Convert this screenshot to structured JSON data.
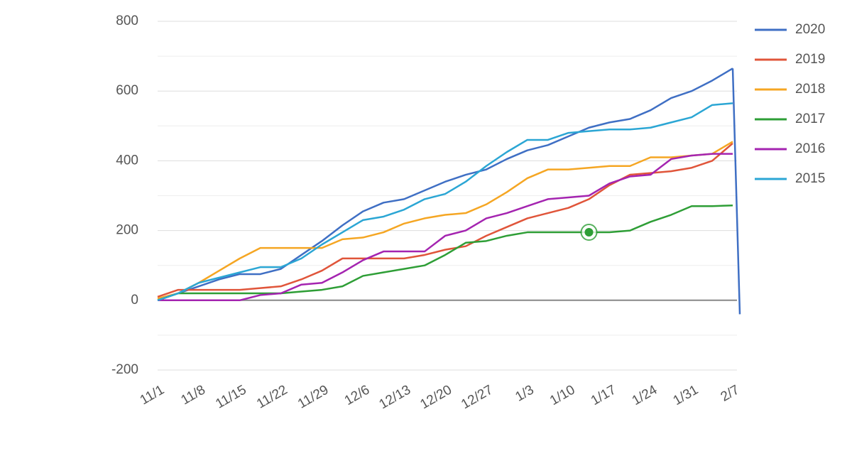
{
  "chart_data": {
    "type": "line",
    "categories": [
      "11/1",
      null,
      "11/8",
      null,
      "11/15",
      null,
      "11/22",
      null,
      "11/29",
      null,
      "12/6",
      null,
      "12/13",
      null,
      "12/20",
      null,
      "12/27",
      null,
      "1/3",
      null,
      "1/10",
      null,
      "1/17",
      null,
      "1/24",
      null,
      "1/31",
      null,
      "2/7"
    ],
    "series": [
      {
        "name": "2020",
        "color": "#3f6fc4",
        "values": [
          0,
          20,
          40,
          60,
          75,
          75,
          90,
          130,
          170,
          215,
          255,
          280,
          290,
          315,
          340,
          360,
          375,
          405,
          430,
          445,
          470,
          495,
          510,
          520,
          545,
          580,
          600,
          630,
          665
        ]
      },
      {
        "name": "2019",
        "color": "#e0553a",
        "values": [
          10,
          30,
          30,
          30,
          30,
          35,
          40,
          60,
          85,
          120,
          120,
          120,
          120,
          130,
          145,
          155,
          185,
          210,
          235,
          250,
          265,
          290,
          330,
          360,
          365,
          370,
          380,
          400,
          450
        ]
      },
      {
        "name": "2018",
        "color": "#f5a623",
        "values": [
          5,
          20,
          50,
          85,
          120,
          150,
          150,
          150,
          150,
          175,
          180,
          195,
          220,
          235,
          245,
          250,
          275,
          310,
          350,
          375,
          375,
          380,
          385,
          385,
          410,
          410,
          415,
          420,
          455
        ]
      },
      {
        "name": "2017",
        "color": "#2e9e36",
        "values": [
          0,
          20,
          20,
          20,
          20,
          20,
          20,
          25,
          30,
          40,
          70,
          80,
          90,
          100,
          130,
          165,
          170,
          185,
          195,
          195,
          195,
          195,
          195,
          200,
          225,
          245,
          270,
          270,
          272
        ]
      },
      {
        "name": "2016",
        "color": "#a424b0",
        "values": [
          0,
          0,
          0,
          0,
          0,
          15,
          20,
          45,
          50,
          80,
          115,
          140,
          140,
          140,
          185,
          200,
          235,
          250,
          270,
          290,
          295,
          300,
          335,
          355,
          360,
          405,
          415,
          420,
          420
        ]
      },
      {
        "name": "2015",
        "color": "#2ba6d4",
        "values": [
          0,
          20,
          50,
          65,
          80,
          95,
          95,
          120,
          160,
          195,
          230,
          240,
          260,
          290,
          305,
          340,
          385,
          425,
          460,
          460,
          480,
          485,
          490,
          490,
          495,
          510,
          525,
          560,
          565
        ]
      }
    ],
    "drop_end": {
      "series": 0,
      "value": -40
    },
    "highlight_point": {
      "series": 3,
      "index": 21
    },
    "ylim": [
      -200,
      800
    ],
    "yticks": [
      -200,
      0,
      200,
      400,
      600,
      800
    ],
    "minor_yticks": [
      -100,
      100,
      300,
      500,
      700
    ],
    "grid": true,
    "legend": "right"
  }
}
